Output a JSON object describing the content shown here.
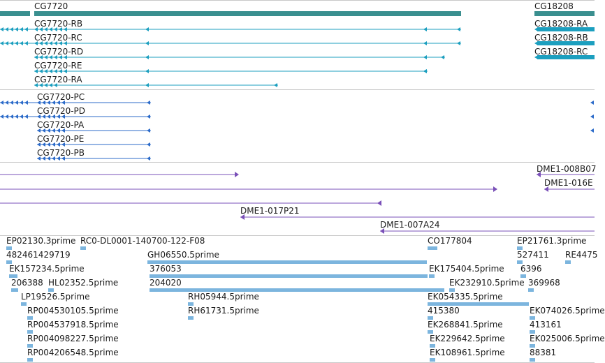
{
  "colors": {
    "gene": "#3a8f8f",
    "transcript": "#1c9fbf",
    "protein": "#2c6bc9",
    "clone": "#7a50b8",
    "est": "#7cb5de",
    "separator": "#c8c8c8",
    "text": "#1a1a1a"
  },
  "tracks": {
    "genes": [
      {
        "label": "CG7720"
      },
      {
        "label": "CG18208"
      }
    ],
    "transcripts": [
      {
        "label": "CG7720-RB"
      },
      {
        "label": "CG7720-RC"
      },
      {
        "label": "CG7720-RD"
      },
      {
        "label": "CG7720-RE"
      },
      {
        "label": "CG7720-RA"
      },
      {
        "label": "CG18208-RA"
      },
      {
        "label": "CG18208-RB"
      },
      {
        "label": "CG18208-RC"
      }
    ],
    "proteins": [
      {
        "label": "CG7720-PC"
      },
      {
        "label": "CG7720-PD"
      },
      {
        "label": "CG7720-PA"
      },
      {
        "label": "CG7720-PE"
      },
      {
        "label": "CG7720-PB"
      }
    ],
    "clones": [
      {
        "label": "DME1-008B07"
      },
      {
        "label": "DME1-016E"
      },
      {
        "label": "DME1-017P21"
      },
      {
        "label": "DME1-007A24"
      }
    ],
    "ests": [
      {
        "label": "EP02130.3prime"
      },
      {
        "label": "RC0-DL0001-140700-122-F08"
      },
      {
        "label": "CO177804"
      },
      {
        "label": "EP21761.3prime"
      },
      {
        "label": "482461429719"
      },
      {
        "label": "GH06550.5prime"
      },
      {
        "label": "527411"
      },
      {
        "label": "RE4475"
      },
      {
        "label": "EK157234.5prime"
      },
      {
        "label": "376053"
      },
      {
        "label": "EK175404.5prime"
      },
      {
        "label": "6396"
      },
      {
        "label": "206388"
      },
      {
        "label": "HL02352.5prime"
      },
      {
        "label": "204020"
      },
      {
        "label": "EK232910.5prime"
      },
      {
        "label": "369968"
      },
      {
        "label": "LP19526.5prime"
      },
      {
        "label": "RH05944.5prime"
      },
      {
        "label": "EK054335.5prime"
      },
      {
        "label": "RP004530105.5prime"
      },
      {
        "label": "RH61731.5prime"
      },
      {
        "label": "415380"
      },
      {
        "label": "EK074026.5prime"
      },
      {
        "label": "RP004537918.5prime"
      },
      {
        "label": "EK268841.5prime"
      },
      {
        "label": "413161"
      },
      {
        "label": "RP004098227.5prime"
      },
      {
        "label": "EK229642.5prime"
      },
      {
        "label": "EK025006.5prime"
      },
      {
        "label": "RP004206548.5prime"
      },
      {
        "label": "EK108961.5prime"
      },
      {
        "label": "88381"
      }
    ]
  }
}
